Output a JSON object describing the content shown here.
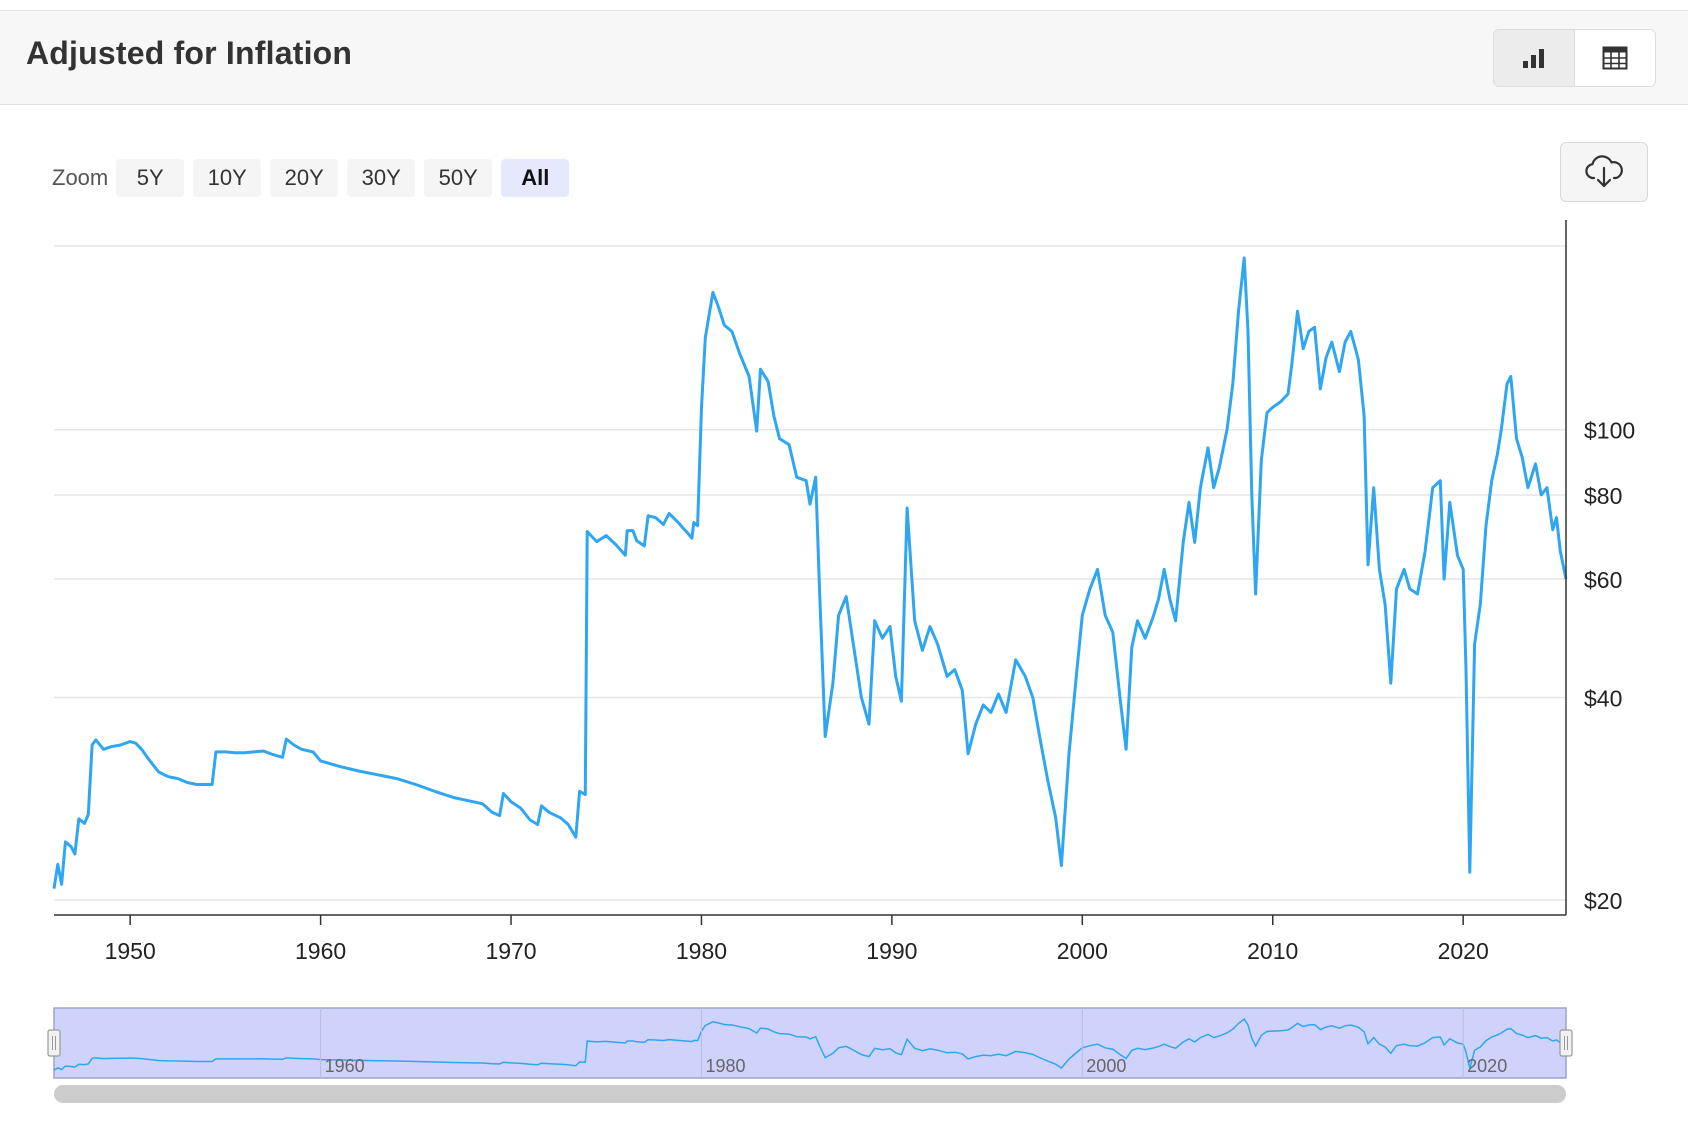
{
  "header": {
    "title": "Adjusted for Inflation"
  },
  "view_toggle": {
    "chart_icon": "bar-chart-icon",
    "table_icon": "table-icon"
  },
  "zoom": {
    "label": "Zoom",
    "options": [
      "5Y",
      "10Y",
      "20Y",
      "30Y",
      "50Y",
      "All"
    ],
    "active": "All"
  },
  "download": {
    "icon": "cloud-download-icon"
  },
  "colors": {
    "line": "#2ea6f2",
    "navigator_fill": "#cfd3fc",
    "navigator_border": "#9ea3c8",
    "grid": "#e6e6e6",
    "scrollbar": "#cccccc"
  },
  "chart_data": {
    "type": "line",
    "y_scale": "log",
    "grid": true,
    "x_ticks": [
      "1950",
      "1960",
      "1970",
      "1980",
      "1990",
      "2000",
      "2010",
      "2020"
    ],
    "y_ticks": [
      "$20",
      "$40",
      "$60",
      "$80",
      "$100"
    ],
    "y_tick_values": [
      20,
      40,
      60,
      80,
      100
    ],
    "xlim": [
      1946.0,
      2025.4
    ],
    "ylim": [
      19,
      205
    ],
    "series": [
      {
        "points": [
          [
            1946.0,
            20.8
          ],
          [
            1946.2,
            22.6
          ],
          [
            1946.4,
            21.1
          ],
          [
            1946.6,
            24.4
          ],
          [
            1946.9,
            24.0
          ],
          [
            1947.1,
            23.4
          ],
          [
            1947.3,
            26.4
          ],
          [
            1947.6,
            26.0
          ],
          [
            1947.8,
            26.8
          ],
          [
            1948.0,
            34.0
          ],
          [
            1948.2,
            34.6
          ],
          [
            1948.6,
            33.5
          ],
          [
            1949.0,
            33.8
          ],
          [
            1949.5,
            34.0
          ],
          [
            1950.0,
            34.4
          ],
          [
            1950.3,
            34.2
          ],
          [
            1950.6,
            33.5
          ],
          [
            1951.0,
            32.3
          ],
          [
            1951.5,
            31.0
          ],
          [
            1952.0,
            30.5
          ],
          [
            1952.5,
            30.3
          ],
          [
            1953.0,
            29.9
          ],
          [
            1953.5,
            29.7
          ],
          [
            1953.9,
            29.7
          ],
          [
            1954.3,
            29.7
          ],
          [
            1954.5,
            33.2
          ],
          [
            1955.0,
            33.2
          ],
          [
            1955.5,
            33.1
          ],
          [
            1956.0,
            33.1
          ],
          [
            1956.5,
            33.2
          ],
          [
            1957.0,
            33.3
          ],
          [
            1957.5,
            32.9
          ],
          [
            1958.0,
            32.6
          ],
          [
            1958.2,
            34.7
          ],
          [
            1958.6,
            34.0
          ],
          [
            1959.0,
            33.5
          ],
          [
            1959.6,
            33.2
          ],
          [
            1960.0,
            32.2
          ],
          [
            1961.0,
            31.6
          ],
          [
            1962.0,
            31.1
          ],
          [
            1963.0,
            30.7
          ],
          [
            1964.0,
            30.3
          ],
          [
            1965.0,
            29.7
          ],
          [
            1966.0,
            29.0
          ],
          [
            1967.0,
            28.4
          ],
          [
            1968.0,
            28.0
          ],
          [
            1968.5,
            27.8
          ],
          [
            1969.0,
            27.0
          ],
          [
            1969.4,
            26.7
          ],
          [
            1969.6,
            28.8
          ],
          [
            1970.0,
            28.0
          ],
          [
            1970.5,
            27.4
          ],
          [
            1971.0,
            26.3
          ],
          [
            1971.4,
            25.9
          ],
          [
            1971.6,
            27.6
          ],
          [
            1972.0,
            27.0
          ],
          [
            1972.6,
            26.5
          ],
          [
            1973.0,
            25.9
          ],
          [
            1973.4,
            24.8
          ],
          [
            1973.6,
            29.0
          ],
          [
            1973.9,
            28.7
          ],
          [
            1974.0,
            70.6
          ],
          [
            1974.5,
            68.2
          ],
          [
            1975.0,
            69.6
          ],
          [
            1975.5,
            67.5
          ],
          [
            1976.0,
            65.1
          ],
          [
            1976.1,
            70.8
          ],
          [
            1976.4,
            70.8
          ],
          [
            1976.6,
            68.4
          ],
          [
            1977.0,
            67.2
          ],
          [
            1977.2,
            74.5
          ],
          [
            1977.6,
            74.0
          ],
          [
            1978.0,
            72.3
          ],
          [
            1978.3,
            75.1
          ],
          [
            1978.8,
            72.7
          ],
          [
            1979.0,
            71.6
          ],
          [
            1979.3,
            70.1
          ],
          [
            1979.5,
            69.0
          ],
          [
            1979.6,
            72.8
          ],
          [
            1979.8,
            72.0
          ],
          [
            1980.0,
            108.0
          ],
          [
            1980.2,
            137.0
          ],
          [
            1980.6,
            160.0
          ],
          [
            1980.9,
            152.0
          ],
          [
            1981.2,
            143.0
          ],
          [
            1981.6,
            140.0
          ],
          [
            1982.0,
            130.0
          ],
          [
            1982.5,
            120.0
          ],
          [
            1982.9,
            99.5
          ],
          [
            1983.1,
            123.0
          ],
          [
            1983.5,
            118.0
          ],
          [
            1983.8,
            105.0
          ],
          [
            1984.1,
            97.0
          ],
          [
            1984.6,
            95.0
          ],
          [
            1985.0,
            85.0
          ],
          [
            1985.5,
            84.0
          ],
          [
            1985.7,
            77.5
          ],
          [
            1986.0,
            85.0
          ],
          [
            1986.2,
            58.0
          ],
          [
            1986.5,
            35.0
          ],
          [
            1986.9,
            42.0
          ],
          [
            1987.2,
            53.0
          ],
          [
            1987.6,
            56.5
          ],
          [
            1988.0,
            47.5
          ],
          [
            1988.4,
            40.0
          ],
          [
            1988.8,
            36.5
          ],
          [
            1989.1,
            52.0
          ],
          [
            1989.5,
            49.0
          ],
          [
            1989.9,
            51.0
          ],
          [
            1990.2,
            43.0
          ],
          [
            1990.5,
            39.5
          ],
          [
            1990.8,
            76.5
          ],
          [
            1991.2,
            52.0
          ],
          [
            1991.6,
            47.0
          ],
          [
            1992.0,
            51.0
          ],
          [
            1992.4,
            48.0
          ],
          [
            1992.9,
            43.0
          ],
          [
            1993.3,
            44.0
          ],
          [
            1993.7,
            41.0
          ],
          [
            1994.0,
            33.0
          ],
          [
            1994.4,
            36.5
          ],
          [
            1994.8,
            39.0
          ],
          [
            1995.2,
            38.0
          ],
          [
            1995.6,
            40.5
          ],
          [
            1996.0,
            38.0
          ],
          [
            1996.5,
            45.5
          ],
          [
            1997.0,
            43.0
          ],
          [
            1997.4,
            40.0
          ],
          [
            1997.8,
            34.5
          ],
          [
            1998.2,
            30.0
          ],
          [
            1998.6,
            26.5
          ],
          [
            1998.9,
            22.5
          ],
          [
            1999.3,
            33.0
          ],
          [
            1999.7,
            43.5
          ],
          [
            2000.0,
            53.0
          ],
          [
            2000.4,
            58.0
          ],
          [
            2000.8,
            62.0
          ],
          [
            2001.2,
            53.0
          ],
          [
            2001.6,
            50.0
          ],
          [
            2002.0,
            39.5
          ],
          [
            2002.3,
            33.5
          ],
          [
            2002.6,
            47.5
          ],
          [
            2002.9,
            52.0
          ],
          [
            2003.3,
            49.0
          ],
          [
            2003.7,
            52.5
          ],
          [
            2004.0,
            56.0
          ],
          [
            2004.3,
            62.0
          ],
          [
            2004.6,
            56.0
          ],
          [
            2004.9,
            52.0
          ],
          [
            2005.3,
            68.0
          ],
          [
            2005.6,
            78.0
          ],
          [
            2005.9,
            68.0
          ],
          [
            2006.2,
            82.0
          ],
          [
            2006.6,
            94.0
          ],
          [
            2006.9,
            82.0
          ],
          [
            2007.2,
            88.0
          ],
          [
            2007.6,
            100.0
          ],
          [
            2007.9,
            117.0
          ],
          [
            2008.2,
            150.0
          ],
          [
            2008.5,
            180.0
          ],
          [
            2008.7,
            140.0
          ],
          [
            2008.9,
            80.0
          ],
          [
            2009.1,
            57.0
          ],
          [
            2009.4,
            90.0
          ],
          [
            2009.7,
            106.0
          ],
          [
            2010.0,
            108.0
          ],
          [
            2010.4,
            110.0
          ],
          [
            2010.8,
            113.0
          ],
          [
            2011.0,
            125.0
          ],
          [
            2011.3,
            150.0
          ],
          [
            2011.6,
            132.0
          ],
          [
            2011.9,
            140.0
          ],
          [
            2012.2,
            142.0
          ],
          [
            2012.5,
            115.0
          ],
          [
            2012.8,
            128.0
          ],
          [
            2013.1,
            135.0
          ],
          [
            2013.5,
            122.0
          ],
          [
            2013.8,
            135.0
          ],
          [
            2014.1,
            140.0
          ],
          [
            2014.5,
            127.0
          ],
          [
            2014.8,
            105.0
          ],
          [
            2015.0,
            63.0
          ],
          [
            2015.3,
            82.0
          ],
          [
            2015.6,
            62.0
          ],
          [
            2015.9,
            55.0
          ],
          [
            2016.2,
            42.0
          ],
          [
            2016.5,
            58.0
          ],
          [
            2016.9,
            62.0
          ],
          [
            2017.2,
            58.0
          ],
          [
            2017.6,
            57.0
          ],
          [
            2018.0,
            66.0
          ],
          [
            2018.4,
            82.0
          ],
          [
            2018.8,
            84.0
          ],
          [
            2019.0,
            60.0
          ],
          [
            2019.3,
            78.0
          ],
          [
            2019.7,
            65.0
          ],
          [
            2020.0,
            62.0
          ],
          [
            2020.15,
            44.0
          ],
          [
            2020.35,
            22.0
          ],
          [
            2020.6,
            48.0
          ],
          [
            2020.9,
            55.0
          ],
          [
            2021.2,
            72.0
          ],
          [
            2021.5,
            84.0
          ],
          [
            2021.8,
            92.0
          ],
          [
            2022.0,
            100.0
          ],
          [
            2022.3,
            117.0
          ],
          [
            2022.5,
            120.0
          ],
          [
            2022.8,
            97.0
          ],
          [
            2023.1,
            91.0
          ],
          [
            2023.4,
            82.0
          ],
          [
            2023.8,
            89.0
          ],
          [
            2024.1,
            80.0
          ],
          [
            2024.4,
            82.0
          ],
          [
            2024.7,
            71.0
          ],
          [
            2024.9,
            74.0
          ],
          [
            2025.1,
            66.0
          ],
          [
            2025.4,
            60.0
          ]
        ]
      }
    ]
  },
  "navigator": {
    "labels": [
      "1960",
      "1980",
      "2000",
      "2020"
    ]
  }
}
